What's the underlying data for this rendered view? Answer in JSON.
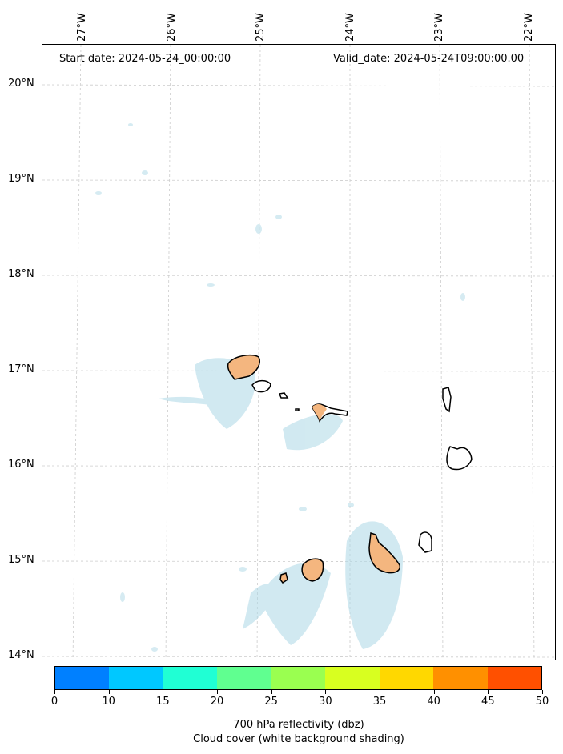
{
  "header": {
    "start_date": "Start date: 2024-05-24_00:00:00",
    "valid_date": "Valid_date: 2024-05-24T09:00:00.00"
  },
  "lon_labels": [
    "27°W",
    "26°W",
    "25°W",
    "24°W",
    "23°W",
    "22°W"
  ],
  "lat_labels": [
    "20°N",
    "19°N",
    "18°N",
    "17°N",
    "16°N",
    "15°N",
    "14°N"
  ],
  "colorbar": {
    "ticks": [
      "0",
      "10",
      "15",
      "20",
      "25",
      "30",
      "35",
      "40",
      "45",
      "50"
    ],
    "colors": [
      "#0080ff",
      "#00c8ff",
      "#20ffd4",
      "#60ff90",
      "#9aff50",
      "#d8ff20",
      "#ffd800",
      "#ff9000",
      "#ff5000"
    ],
    "label": "700 hPa reflectivity (dbz)",
    "sublabel": "Cloud cover (white background shading)"
  },
  "colors": {
    "cloud": "#add8e6",
    "land_precip": "#f4b67f",
    "grid": "#cccccc"
  }
}
